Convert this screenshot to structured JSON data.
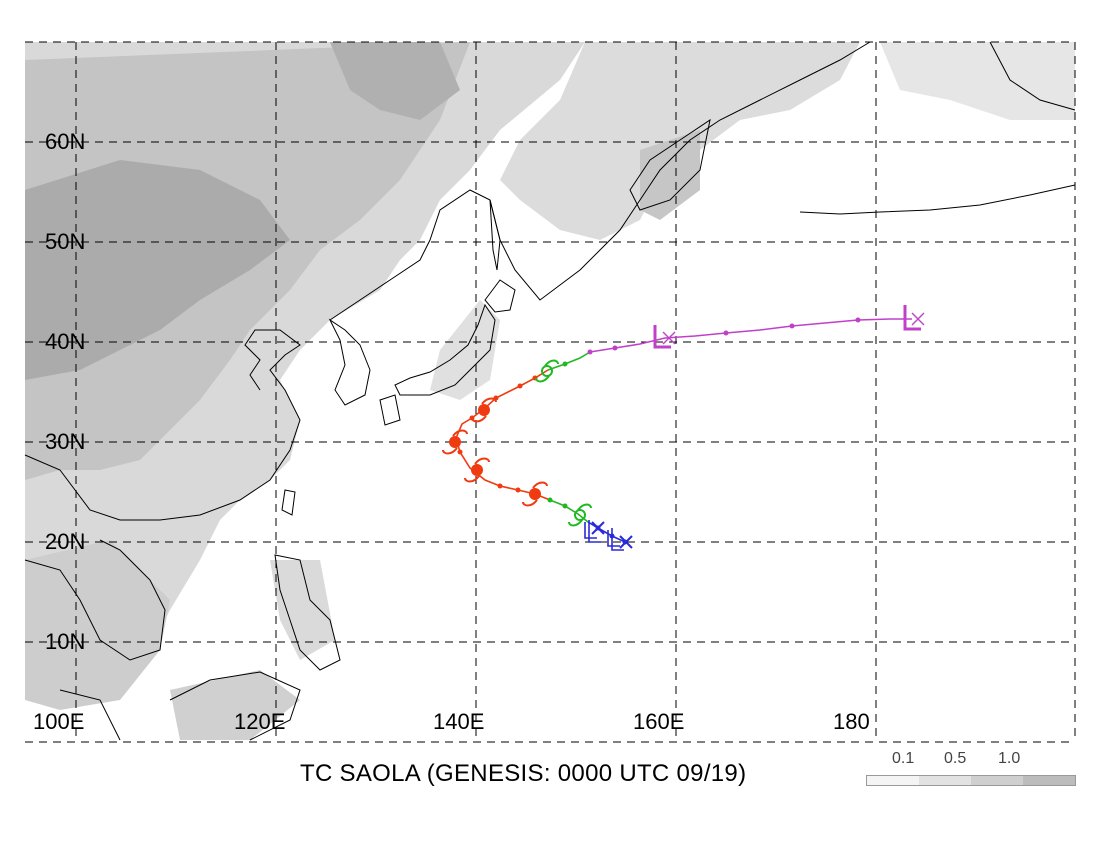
{
  "title": "TC SAOLA (GENESIS: 0000 UTC 09/19)",
  "latitude_labels": [
    "60N",
    "50N",
    "40N",
    "30N",
    "20N",
    "10N"
  ],
  "longitude_labels": [
    "100E",
    "120E",
    "140E",
    "160E",
    "180"
  ],
  "legend": {
    "labels": [
      "0.1",
      "0.5",
      "1.0"
    ],
    "colors": [
      "#f4f4f4",
      "#e2e2e2",
      "#cfcfcf",
      "#bcbcbc"
    ]
  },
  "colors": {
    "track_blue": "#2a2ad8",
    "track_green": "#22b822",
    "track_red": "#f03a10",
    "track_magenta": "#c040c8",
    "land_shading_light": "#d6d6d6",
    "land_shading_dark": "#a8a8a8"
  }
}
